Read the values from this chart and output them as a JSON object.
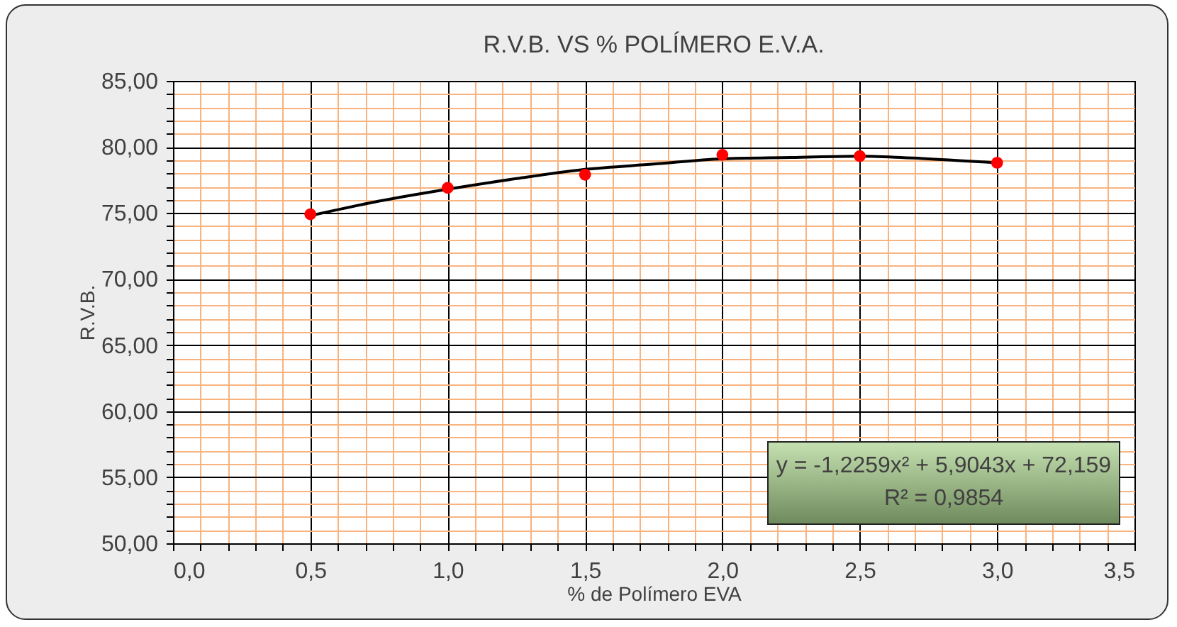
{
  "chart_data": {
    "type": "scatter",
    "title": "R.V.B. VS % POLÍMERO E.V.A.",
    "xlabel": "% de Polímero EVA",
    "ylabel": "R.V.B.",
    "annotations": [
      "y = -1,2259x² + 5,9043x + 72,159",
      "R² = 0,9854"
    ],
    "x": [
      0.5,
      1.0,
      1.5,
      2.0,
      2.5,
      3.0
    ],
    "series": [
      {
        "type": "line",
        "color": "#000000",
        "x": [
          0.5,
          0.75,
          1.0,
          1.25,
          1.5,
          1.75,
          2.0,
          2.25,
          2.5,
          2.75,
          3.0
        ],
        "values": [
          74.8,
          75.9,
          76.8,
          77.6,
          78.3,
          78.7,
          79.1,
          79.2,
          79.3,
          79.1,
          78.8
        ]
      },
      {
        "color": "#ff0000",
        "marker": "circle",
        "values": [
          74.9,
          76.9,
          77.9,
          79.4,
          79.3,
          78.8
        ]
      }
    ],
    "grid": true,
    "xlim": [
      0,
      3.5
    ],
    "ylim": [
      50,
      85
    ],
    "xticks": [
      {
        "value": 0,
        "label": "0,0"
      },
      {
        "value": 0.1,
        "label": null
      },
      {
        "value": 0.2,
        "label": null
      },
      {
        "value": 0.3,
        "label": null
      },
      {
        "value": 0.4,
        "label": null
      },
      {
        "value": 0.5,
        "label": "0,5"
      },
      {
        "value": 0.6,
        "label": null
      },
      {
        "value": 0.7,
        "label": null
      },
      {
        "value": 0.8,
        "label": null
      },
      {
        "value": 0.9,
        "label": null
      },
      {
        "value": 1.0,
        "label": "1,0"
      },
      {
        "value": 1.1,
        "label": null
      },
      {
        "value": 1.2,
        "label": null
      },
      {
        "value": 1.3,
        "label": null
      },
      {
        "value": 1.4,
        "label": null
      },
      {
        "value": 1.5,
        "label": "1,5"
      },
      {
        "value": 1.6,
        "label": null
      },
      {
        "value": 1.7,
        "label": null
      },
      {
        "value": 1.8,
        "label": null
      },
      {
        "value": 1.9,
        "label": null
      },
      {
        "value": 2.0,
        "label": "2,0"
      },
      {
        "value": 2.1,
        "label": null
      },
      {
        "value": 2.2,
        "label": null
      },
      {
        "value": 2.3,
        "label": null
      },
      {
        "value": 2.4,
        "label": null
      },
      {
        "value": 2.5,
        "label": "2,5"
      },
      {
        "value": 2.6,
        "label": null
      },
      {
        "value": 2.7,
        "label": null
      },
      {
        "value": 2.8,
        "label": null
      },
      {
        "value": 2.9,
        "label": null
      },
      {
        "value": 3.0,
        "label": "3,0"
      },
      {
        "value": 3.1,
        "label": null
      },
      {
        "value": 3.2,
        "label": null
      },
      {
        "value": 3.3,
        "label": null
      },
      {
        "value": 3.4,
        "label": null
      },
      {
        "value": 3.5,
        "label": "3,5"
      }
    ],
    "yticks": [
      {
        "value": 50,
        "label": "50,00"
      },
      {
        "value": 51,
        "label": null
      },
      {
        "value": 52,
        "label": null
      },
      {
        "value": 53,
        "label": null
      },
      {
        "value": 54,
        "label": null
      },
      {
        "value": 55,
        "label": "55,00"
      },
      {
        "value": 56,
        "label": null
      },
      {
        "value": 57,
        "label": null
      },
      {
        "value": 58,
        "label": null
      },
      {
        "value": 59,
        "label": null
      },
      {
        "value": 60,
        "label": "60,00"
      },
      {
        "value": 61,
        "label": null
      },
      {
        "value": 62,
        "label": null
      },
      {
        "value": 63,
        "label": null
      },
      {
        "value": 64,
        "label": null
      },
      {
        "value": 65,
        "label": "65,00"
      },
      {
        "value": 66,
        "label": null
      },
      {
        "value": 67,
        "label": null
      },
      {
        "value": 68,
        "label": null
      },
      {
        "value": 69,
        "label": null
      },
      {
        "value": 70,
        "label": "70,00"
      },
      {
        "value": 71,
        "label": null
      },
      {
        "value": 72,
        "label": null
      },
      {
        "value": 73,
        "label": null
      },
      {
        "value": 74,
        "label": null
      },
      {
        "value": 75,
        "label": "75,00"
      },
      {
        "value": 76,
        "label": null
      },
      {
        "value": 77,
        "label": null
      },
      {
        "value": 78,
        "label": null
      },
      {
        "value": 79,
        "label": null
      },
      {
        "value": 80,
        "label": "80,00"
      },
      {
        "value": 81,
        "label": null
      },
      {
        "value": 82,
        "label": null
      },
      {
        "value": 83,
        "label": null
      },
      {
        "value": 84,
        "label": null
      },
      {
        "value": 85,
        "label": "85,00"
      }
    ]
  }
}
